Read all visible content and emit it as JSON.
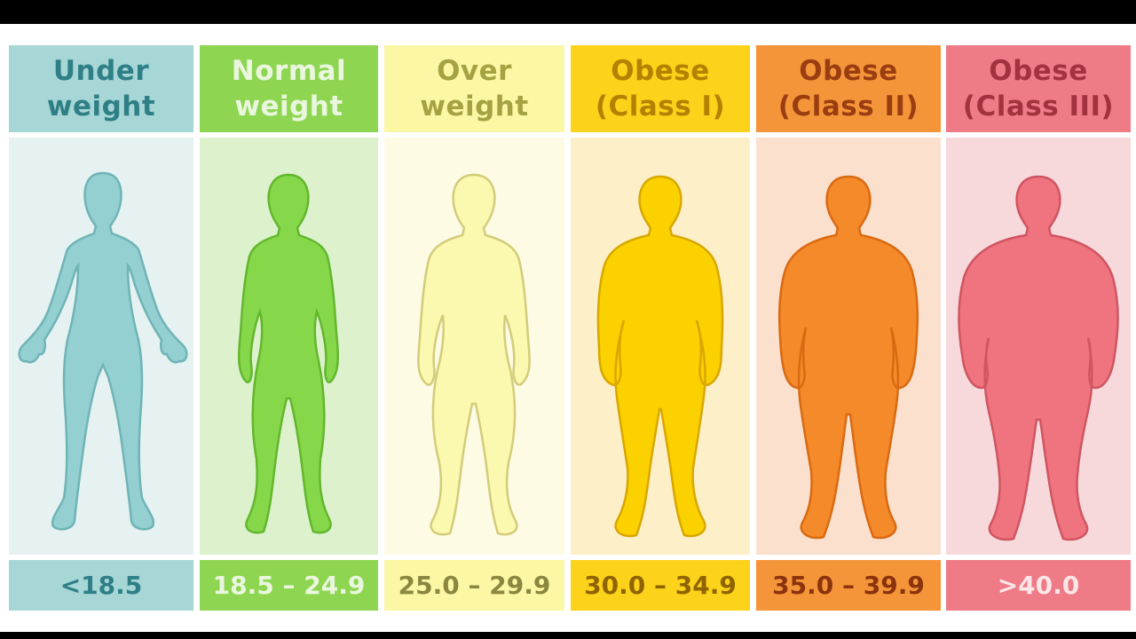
{
  "categories": [
    {
      "line1": "Under",
      "line2": "weight",
      "range": "<18.5",
      "header_bg": "#a6d6d6",
      "header_text": "#2f7f86",
      "panel_bg": "#e6f2f2",
      "figure_color": "#94cfd1",
      "figure_stroke": "#6fb4b6",
      "footer_bg": "#a6d6d6",
      "footer_text": "#2f7f86"
    },
    {
      "line1": "Normal",
      "line2": "weight",
      "range": "18.5 – 24.9",
      "header_bg": "#8ed651",
      "header_text": "#eaf7de",
      "panel_bg": "#dcf1cc",
      "figure_color": "#86d84a",
      "figure_stroke": "#62b72d",
      "footer_bg": "#8ed651",
      "footer_text": "#eaf7de"
    },
    {
      "line1": "Over",
      "line2": "weight",
      "range": "25.0 – 29.9",
      "header_bg": "#fbf7a4",
      "header_text": "#a5a243",
      "panel_bg": "#fdfbe3",
      "figure_color": "#fbf8b0",
      "figure_stroke": "#d3cc7a",
      "footer_bg": "#fbf7a4",
      "footer_text": "#8a8741"
    },
    {
      "line1": "Obese",
      "line2": "(Class I)",
      "range": "30.0 – 34.9",
      "header_bg": "#fcd21a",
      "header_text": "#b58100",
      "panel_bg": "#fdf0c9",
      "figure_color": "#fbd100",
      "figure_stroke": "#d9a700",
      "footer_bg": "#fcd21a",
      "footer_text": "#8f6400"
    },
    {
      "line1": "Obese",
      "line2": "(Class II)",
      "range": "35.0 – 39.9",
      "header_bg": "#f5953a",
      "header_text": "#9a3d10",
      "panel_bg": "#fbe0cd",
      "figure_color": "#f58a2a",
      "figure_stroke": "#d96a12",
      "footer_bg": "#f5953a",
      "footer_text": "#8a330c"
    },
    {
      "line1": "Obese",
      "line2": "(Class III)",
      "range": ">40.0",
      "header_bg": "#ee7b86",
      "header_text": "#a3323f",
      "panel_bg": "#f7d9dc",
      "figure_color": "#ef7480",
      "figure_stroke": "#cf5561",
      "footer_bg": "#ee7b86",
      "footer_text": "#fce6e8"
    }
  ]
}
